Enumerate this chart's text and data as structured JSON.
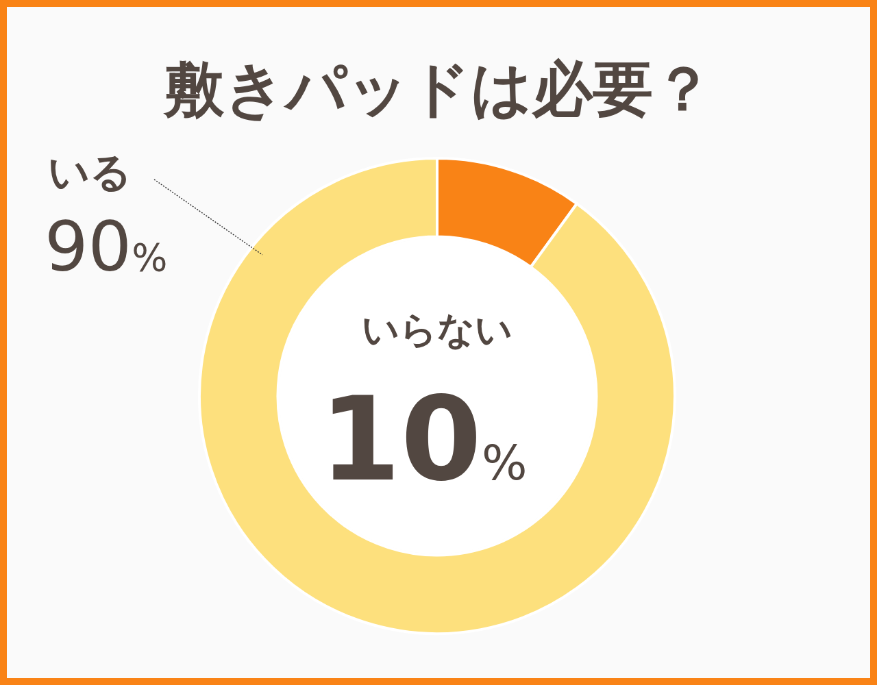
{
  "chart_data": {
    "type": "donut",
    "title": "敷きパッドは必要？",
    "categories": [
      "いらない",
      "いる"
    ],
    "values": [
      10,
      90
    ],
    "colors": [
      "#f98316",
      "#fde07d"
    ],
    "value_labels": [
      "10%",
      "90%"
    ]
  }
}
